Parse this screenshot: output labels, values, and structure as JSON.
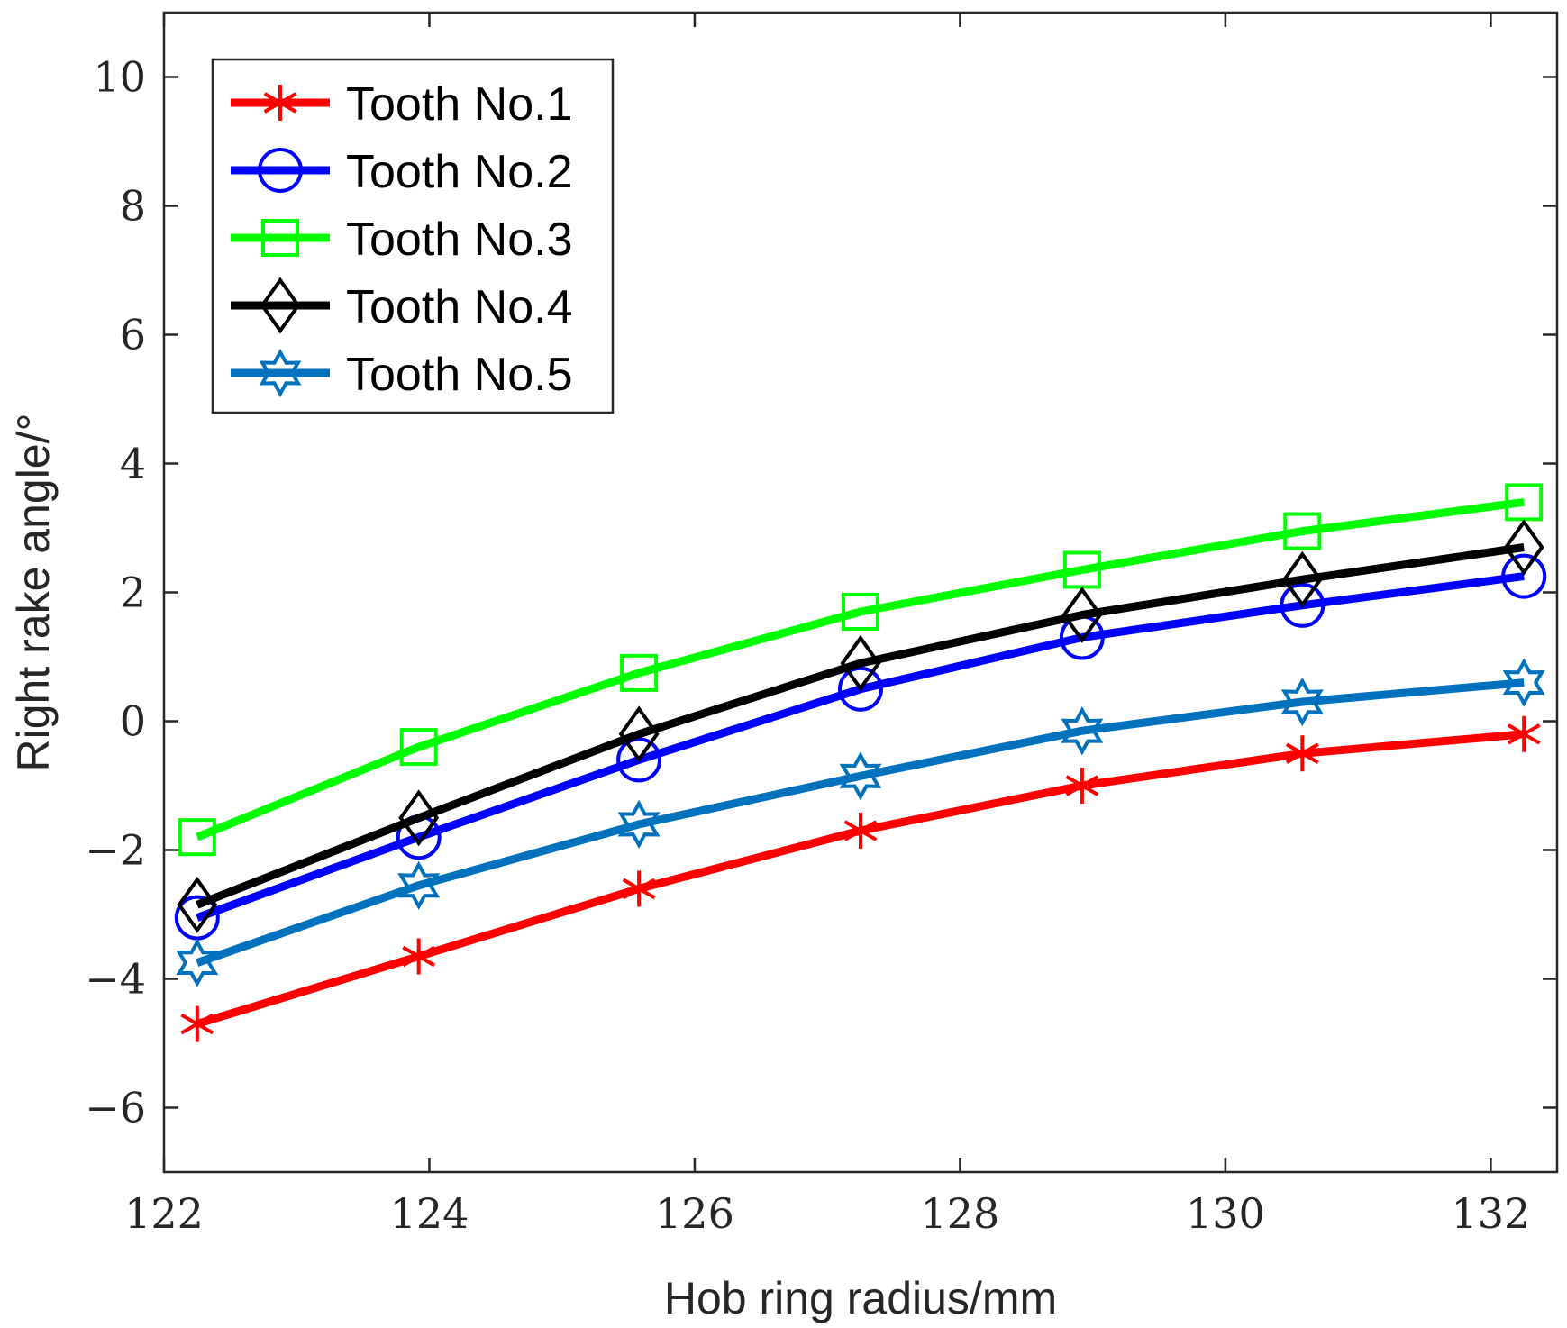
{
  "chart_data": {
    "type": "line",
    "title": "",
    "xlabel": "Hob ring radius/mm",
    "ylabel": "Right rake angle/°",
    "xlim": [
      122,
      132.5
    ],
    "ylim": [
      -7,
      11
    ],
    "xticks": [
      122,
      124,
      126,
      128,
      130,
      132
    ],
    "xtick_labels": [
      "122",
      "124",
      "126",
      "128",
      "130",
      "132"
    ],
    "yticks": [
      -6,
      -4,
      -2,
      0,
      2,
      4,
      6,
      8,
      10
    ],
    "ytick_labels": [
      "−6",
      "−4",
      "−2",
      "0",
      "2",
      "4",
      "6",
      "8",
      "10"
    ],
    "grid": false,
    "legend_position": "top-left",
    "x": [
      122.25,
      123.92,
      125.58,
      127.25,
      128.92,
      130.58,
      132.25
    ],
    "series": [
      {
        "name": "Tooth No.1",
        "color": "#ff0000",
        "marker": "asterisk",
        "values": [
          -4.7,
          -3.65,
          -2.6,
          -1.7,
          -1.0,
          -0.5,
          -0.2
        ]
      },
      {
        "name": "Tooth No.2",
        "color": "#0000ff",
        "marker": "circle",
        "values": [
          -3.05,
          -1.8,
          -0.6,
          0.5,
          1.3,
          1.8,
          2.25
        ]
      },
      {
        "name": "Tooth No.3",
        "color": "#00ff00",
        "marker": "square",
        "values": [
          -1.8,
          -0.4,
          0.75,
          1.7,
          2.35,
          2.95,
          3.4
        ]
      },
      {
        "name": "Tooth No.4",
        "color": "#000000",
        "marker": "diamond",
        "values": [
          -2.85,
          -1.5,
          -0.2,
          0.9,
          1.65,
          2.2,
          2.7
        ]
      },
      {
        "name": "Tooth No.5",
        "color": "#0072bd",
        "marker": "hexagram",
        "values": [
          -3.75,
          -2.55,
          -1.6,
          -0.85,
          -0.15,
          0.3,
          0.6
        ]
      }
    ]
  }
}
